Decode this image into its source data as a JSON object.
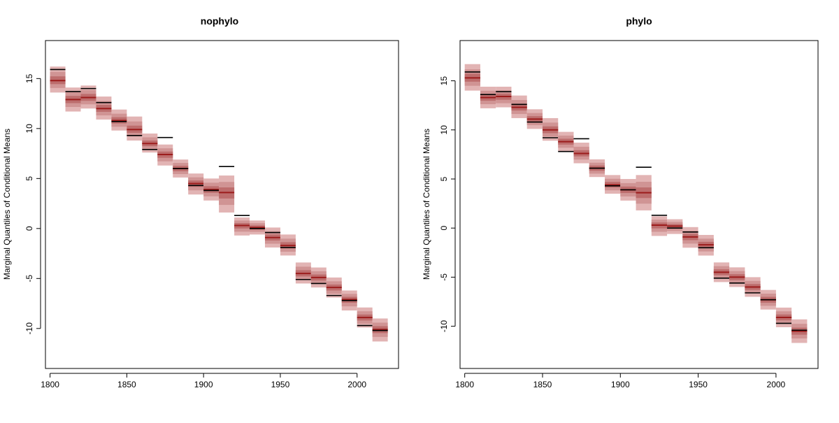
{
  "chart_data": [
    {
      "type": "interval",
      "title": "nophylo",
      "ylabel": "Marginal Quantiles of Conditional Means",
      "xlabel": "",
      "xlim": [
        1797,
        2027
      ],
      "ylim": [
        -14,
        18.8
      ],
      "xticks": [
        1800,
        1850,
        1900,
        1950,
        2000
      ],
      "yticks": [
        -10,
        -5,
        0,
        5,
        10,
        15
      ],
      "bin_width": 10,
      "bins": [
        {
          "x": 1805,
          "median": 14.8,
          "q05": 13.6,
          "q95": 16.2,
          "observed": 15.9
        },
        {
          "x": 1815,
          "median": 12.9,
          "q05": 11.7,
          "q95": 14.1,
          "observed": 13.7
        },
        {
          "x": 1825,
          "median": 13.1,
          "q05": 12.0,
          "q95": 14.3,
          "observed": 14.0
        },
        {
          "x": 1835,
          "median": 12.0,
          "q05": 10.9,
          "q95": 13.2,
          "observed": 12.6
        },
        {
          "x": 1845,
          "median": 10.8,
          "q05": 9.8,
          "q95": 11.9,
          "observed": 10.7
        },
        {
          "x": 1855,
          "median": 9.9,
          "q05": 8.8,
          "q95": 11.2,
          "observed": 9.3
        },
        {
          "x": 1865,
          "median": 8.5,
          "q05": 7.6,
          "q95": 9.5,
          "observed": 7.9
        },
        {
          "x": 1875,
          "median": 7.4,
          "q05": 6.3,
          "q95": 8.4,
          "observed": 9.1
        },
        {
          "x": 1885,
          "median": 6.0,
          "q05": 5.1,
          "q95": 6.9,
          "observed": 6.0
        },
        {
          "x": 1895,
          "median": 4.5,
          "q05": 3.4,
          "q95": 5.5,
          "observed": 4.3
        },
        {
          "x": 1905,
          "median": 3.9,
          "q05": 2.8,
          "q95": 5.0,
          "observed": 3.8
        },
        {
          "x": 1915,
          "median": 3.6,
          "q05": 1.6,
          "q95": 5.3,
          "observed": 6.2
        },
        {
          "x": 1925,
          "median": 0.3,
          "q05": -0.7,
          "q95": 1.1,
          "observed": 1.3
        },
        {
          "x": 1935,
          "median": 0.1,
          "q05": -0.6,
          "q95": 0.8,
          "observed": 0.0
        },
        {
          "x": 1945,
          "median": -0.9,
          "q05": -1.9,
          "q95": 0.1,
          "observed": -0.4
        },
        {
          "x": 1955,
          "median": -1.7,
          "q05": -2.7,
          "q95": -0.6,
          "observed": -1.9
        },
        {
          "x": 1965,
          "median": -4.5,
          "q05": -5.5,
          "q95": -3.4,
          "observed": -5.1
        },
        {
          "x": 1975,
          "median": -4.9,
          "q05": -5.9,
          "q95": -3.9,
          "observed": -5.5
        },
        {
          "x": 1985,
          "median": -5.9,
          "q05": -6.9,
          "q95": -4.9,
          "observed": -6.7
        },
        {
          "x": 1995,
          "median": -7.1,
          "q05": -8.2,
          "q95": -6.2,
          "observed": -7.2
        },
        {
          "x": 2005,
          "median": -8.9,
          "q05": -9.9,
          "q95": -7.9,
          "observed": -9.7
        },
        {
          "x": 2015,
          "median": -10.1,
          "q05": -11.3,
          "q95": -9.0,
          "observed": -10.2
        }
      ]
    },
    {
      "type": "interval",
      "title": "phylo",
      "ylabel": "Marginal Quantiles of Conditional Means",
      "xlabel": "",
      "xlim": [
        1797,
        2027
      ],
      "ylim": [
        -14.3,
        19.1
      ],
      "xticks": [
        1800,
        1850,
        1900,
        1950,
        2000
      ],
      "yticks": [
        -10,
        -5,
        0,
        5,
        10,
        15
      ],
      "bin_width": 10,
      "bins": [
        {
          "x": 1805,
          "median": 15.3,
          "q05": 14.0,
          "q95": 16.7,
          "observed": 15.9
        },
        {
          "x": 1815,
          "median": 13.3,
          "q05": 12.2,
          "q95": 14.4,
          "observed": 13.6
        },
        {
          "x": 1825,
          "median": 13.4,
          "q05": 12.3,
          "q95": 14.4,
          "observed": 13.9
        },
        {
          "x": 1835,
          "median": 12.3,
          "q05": 11.2,
          "q95": 13.5,
          "observed": 12.6
        },
        {
          "x": 1845,
          "median": 11.1,
          "q05": 10.1,
          "q95": 12.1,
          "observed": 10.8
        },
        {
          "x": 1855,
          "median": 10.0,
          "q05": 8.9,
          "q95": 11.2,
          "observed": 9.2
        },
        {
          "x": 1865,
          "median": 8.8,
          "q05": 7.8,
          "q95": 9.8,
          "observed": 7.8
        },
        {
          "x": 1875,
          "median": 7.6,
          "q05": 6.6,
          "q95": 8.7,
          "observed": 9.1
        },
        {
          "x": 1885,
          "median": 6.1,
          "q05": 5.2,
          "q95": 7.0,
          "observed": 6.1
        },
        {
          "x": 1895,
          "median": 4.4,
          "q05": 3.5,
          "q95": 5.4,
          "observed": 4.3
        },
        {
          "x": 1905,
          "median": 3.9,
          "q05": 2.8,
          "q95": 5.0,
          "observed": 3.9
        },
        {
          "x": 1915,
          "median": 3.6,
          "q05": 1.8,
          "q95": 5.4,
          "observed": 6.2
        },
        {
          "x": 1925,
          "median": 0.3,
          "q05": -0.8,
          "q95": 1.2,
          "observed": 1.3
        },
        {
          "x": 1935,
          "median": 0.2,
          "q05": -0.6,
          "q95": 0.9,
          "observed": 0.0
        },
        {
          "x": 1945,
          "median": -0.9,
          "q05": -2.0,
          "q95": 0.1,
          "observed": -0.4
        },
        {
          "x": 1955,
          "median": -1.7,
          "q05": -2.8,
          "q95": -0.7,
          "observed": -2.0
        },
        {
          "x": 1965,
          "median": -4.5,
          "q05": -5.5,
          "q95": -3.5,
          "observed": -5.1
        },
        {
          "x": 1975,
          "median": -5.0,
          "q05": -6.0,
          "q95": -4.0,
          "observed": -5.6
        },
        {
          "x": 1985,
          "median": -6.0,
          "q05": -7.0,
          "q95": -5.0,
          "observed": -6.6
        },
        {
          "x": 1995,
          "median": -7.3,
          "q05": -8.3,
          "q95": -6.3,
          "observed": -7.3
        },
        {
          "x": 2005,
          "median": -9.1,
          "q05": -10.1,
          "q95": -8.1,
          "observed": -9.7
        },
        {
          "x": 2015,
          "median": -10.5,
          "q05": -11.7,
          "q95": -9.3,
          "observed": -10.4
        }
      ]
    }
  ],
  "colors": {
    "band_outer": "#e2b4b4",
    "band_mid": "#d09494",
    "band_inner": "#bd6d6d",
    "median_line": "#9c1c1c",
    "observed_line": "#000000",
    "axis": "#000000"
  }
}
